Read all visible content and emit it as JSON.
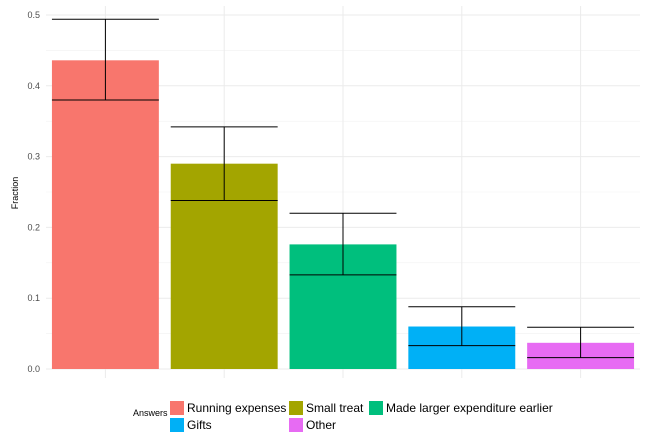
{
  "chart_data": {
    "type": "bar",
    "categories": [
      "Running expenses",
      "Small treat",
      "Made larger expenditure earlier",
      "Gifts",
      "Other"
    ],
    "values": [
      0.436,
      0.29,
      0.176,
      0.06,
      0.037
    ],
    "error_bars": [
      {
        "lower": 0.38,
        "upper": 0.494
      },
      {
        "lower": 0.238,
        "upper": 0.342
      },
      {
        "lower": 0.133,
        "upper": 0.22
      },
      {
        "lower": 0.033,
        "upper": 0.088
      },
      {
        "lower": 0.016,
        "upper": 0.059
      }
    ],
    "colors": [
      "#F8766D",
      "#A3A500",
      "#00BF7D",
      "#00B0F6",
      "#E76BF3"
    ],
    "ylabel": "Fraction",
    "xlabel": "",
    "ylim": [
      0,
      0.5
    ],
    "yticks": [
      "0.0",
      "0.1",
      "0.2",
      "0.3",
      "0.4",
      "0.5"
    ],
    "ytick_values": [
      0,
      0.1,
      0.2,
      0.3,
      0.4,
      0.5
    ],
    "grid": true,
    "legend": {
      "title": "Answers",
      "position": "bottom",
      "entries": [
        "Running expenses",
        "Small treat",
        "Made larger expenditure earlier",
        "Gifts",
        "Other"
      ]
    }
  }
}
